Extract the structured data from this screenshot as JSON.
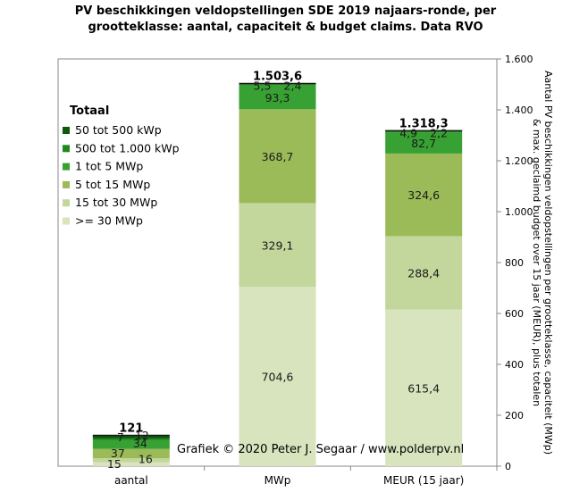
{
  "chart_data": {
    "type": "bar",
    "stacked": true,
    "title_lines": [
      "PV beschikkingen  veldopstellingen SDE 2019 najaars-ronde, per",
      "grootteklasse: aantal, capaciteit & budget claims. Data RVO"
    ],
    "categories": [
      "aantal",
      "MWp",
      "MEUR (15 jaar)"
    ],
    "series": [
      {
        "name": ">= 30 MWp",
        "color": "#d7e4bd",
        "values": [
          15,
          704.6,
          615.4
        ],
        "labels": [
          "15",
          "704,6",
          "615,4"
        ]
      },
      {
        "name": "15  tot 30 MWp",
        "color": "#c3d69b",
        "values": [
          16,
          329.1,
          288.4
        ],
        "labels": [
          "16",
          "329,1",
          "288,4"
        ]
      },
      {
        "name": "5 tot 15 MWp",
        "color": "#9bbb59",
        "values": [
          37,
          368.7,
          324.6
        ],
        "labels": [
          "37",
          "368,7",
          "324,6"
        ]
      },
      {
        "name": "1  tot 5 MWp",
        "color": "#38a133",
        "values": [
          34,
          93.3,
          82.7
        ],
        "labels": [
          "34",
          "93,3",
          "82,7"
        ]
      },
      {
        "name": "500 tot 1.000 kWp",
        "color": "#1e8a1e",
        "values": [
          7,
          5.5,
          4.9
        ],
        "labels": [
          "7",
          "5,5",
          "4,9"
        ]
      },
      {
        "name": "50  tot 500 kWp",
        "color": "#0d5a0d",
        "values": [
          12,
          2.4,
          2.2
        ],
        "labels": [
          "12",
          "2,4",
          "2,2"
        ]
      }
    ],
    "totals": [
      121,
      1503.6,
      1318.3
    ],
    "total_labels": [
      "121",
      "1.503,6",
      "1.318,3"
    ],
    "legend_title": "Totaal",
    "legend_position": "top-left",
    "ylabel_right": "Aantal PV beschikkingen veldopstellingen per grootteklasse, capaciteit (MWp) & max. geclaimd budget over 15 jaar (MEUR), plus totalen",
    "ylim": [
      0,
      1600
    ],
    "yticks": [
      0,
      200,
      400,
      600,
      800,
      1000,
      1200,
      1400,
      1600
    ],
    "ytick_labels": [
      "0",
      "200",
      "400",
      "600",
      "800",
      "1.000",
      "1.200",
      "1.400",
      "1.600"
    ],
    "y_axis_side": "right",
    "grid": false,
    "annotation": "Grafiek  © 2020  Peter J. Segaar / www.polderpv.nl"
  }
}
